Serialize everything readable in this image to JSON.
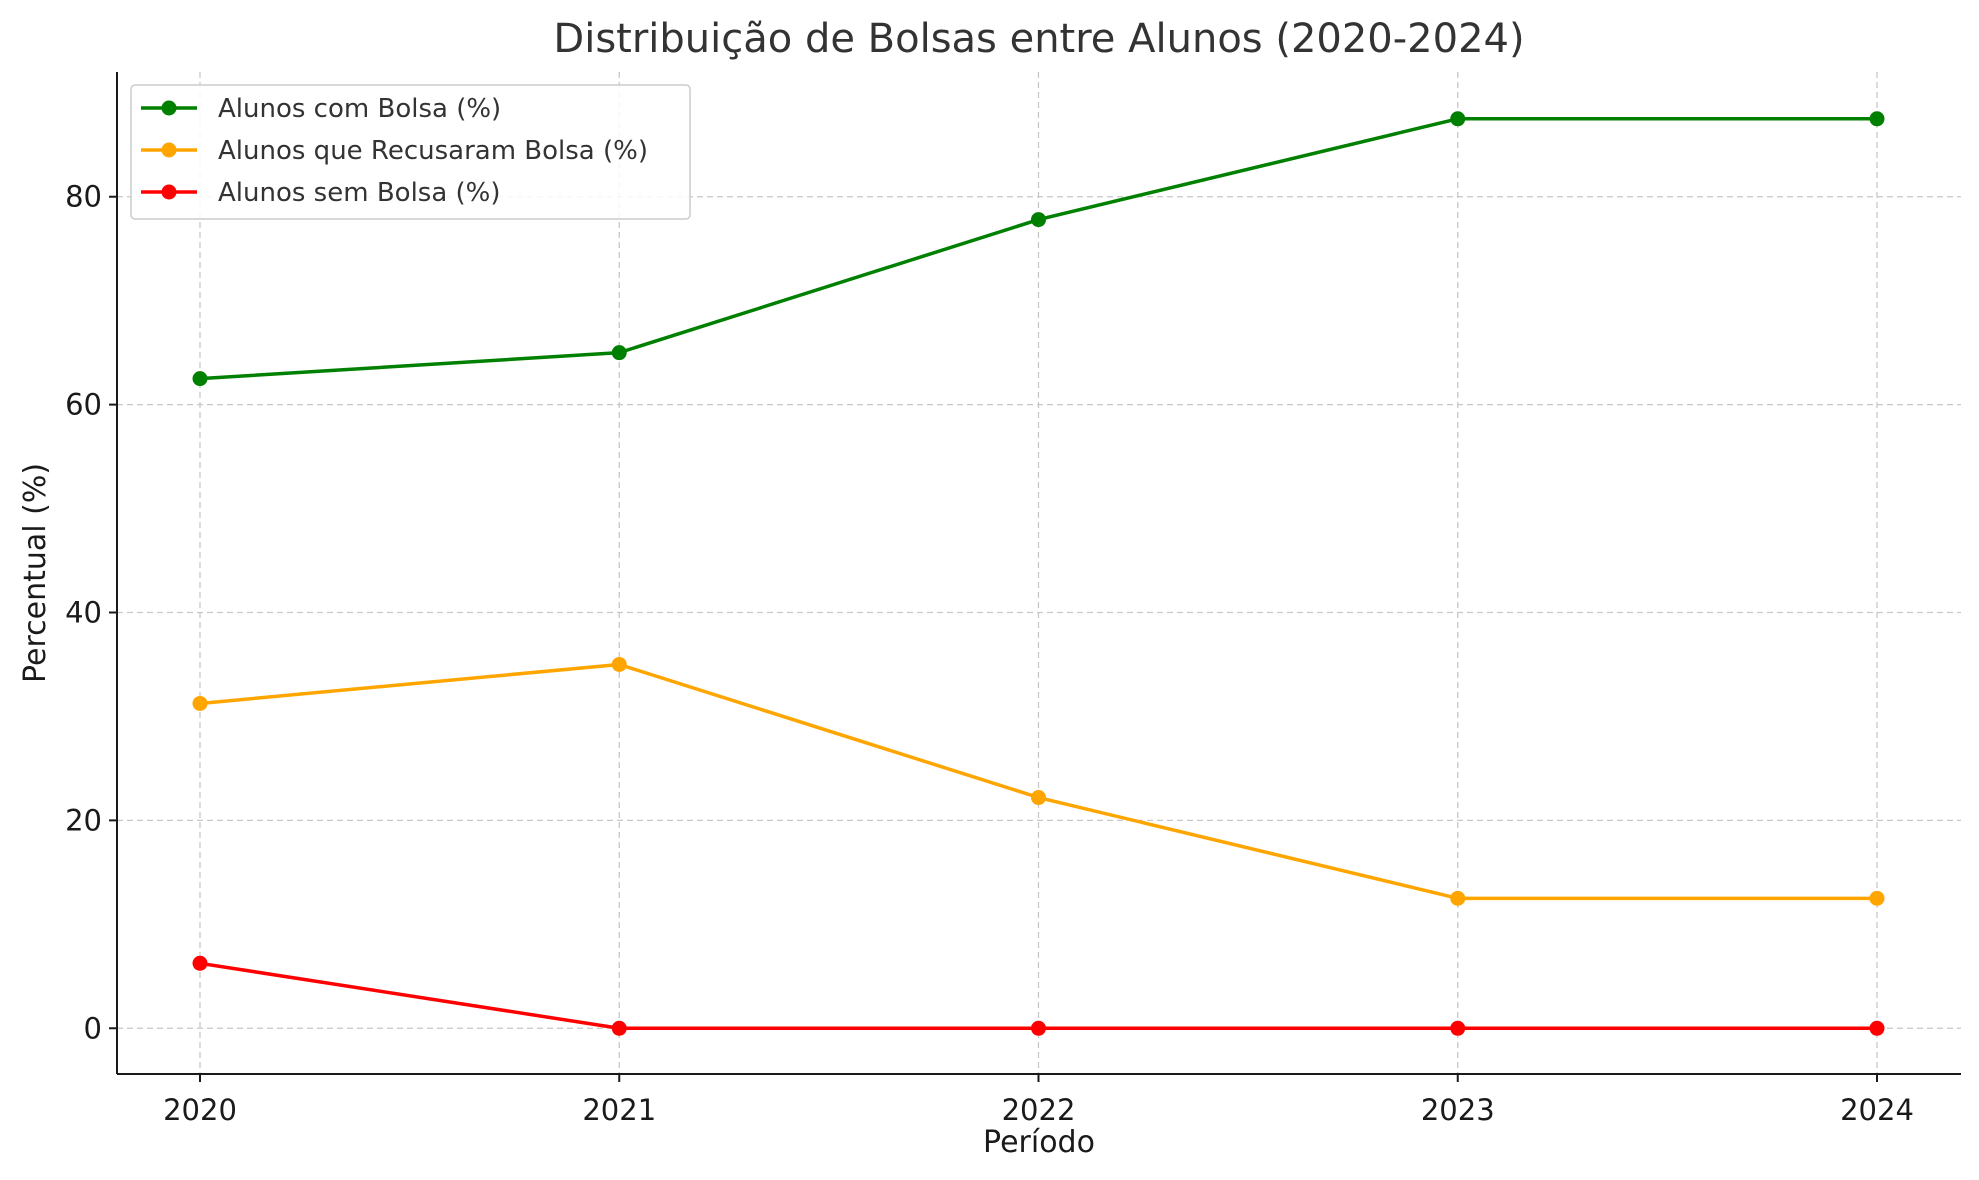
{
  "chart_data": {
    "type": "line",
    "title": "Distribuição de Bolsas entre Alunos (2020-2024)",
    "xlabel": "Período",
    "ylabel": "Percentual (%)",
    "categories": [
      "2020",
      "2021",
      "2022",
      "2023",
      "2024"
    ],
    "ylim": [
      -4.4,
      92
    ],
    "yticks": [
      0,
      20,
      40,
      60,
      80
    ],
    "grid": true,
    "legend_position": "top-left",
    "series": [
      {
        "name": "Alunos com Bolsa (%)",
        "color": "#008000",
        "values": [
          62.5,
          65.0,
          77.8,
          87.5,
          87.5
        ]
      },
      {
        "name": "Alunos que Recusaram Bolsa (%)",
        "color": "#FFA500",
        "values": [
          31.25,
          35.0,
          22.2,
          12.5,
          12.5
        ]
      },
      {
        "name": "Alunos sem Bolsa (%)",
        "color": "#FF0000",
        "values": [
          6.25,
          0,
          0,
          0,
          0
        ]
      }
    ]
  }
}
